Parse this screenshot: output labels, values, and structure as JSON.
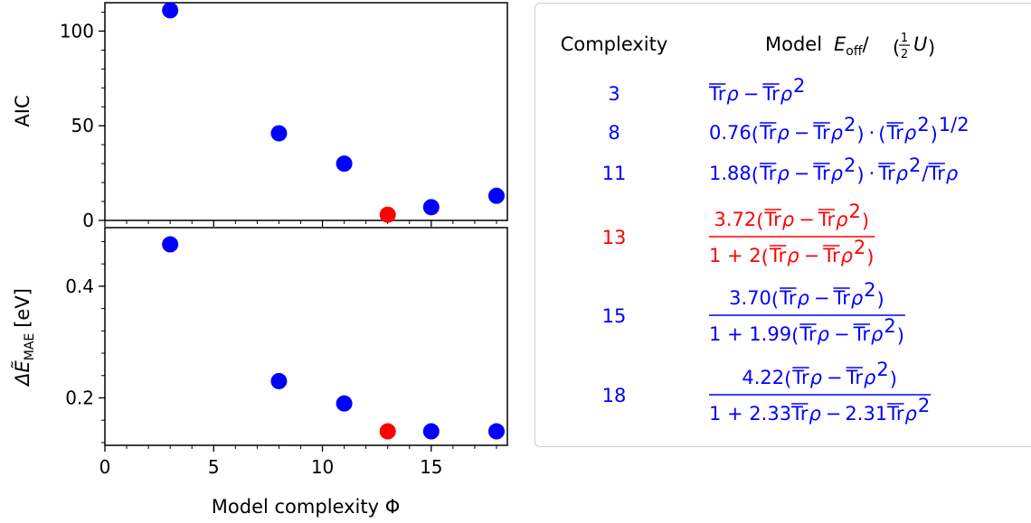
{
  "chart_data": [
    {
      "type": "scatter",
      "ylabel": "AIC",
      "xlabel": "",
      "xlim": [
        0,
        18.5
      ],
      "ylim": [
        0,
        115
      ],
      "yticks": [
        0,
        50,
        100
      ],
      "points": [
        {
          "x": 3,
          "y": 111,
          "color": "#0000ff"
        },
        {
          "x": 8,
          "y": 46,
          "color": "#0000ff"
        },
        {
          "x": 11,
          "y": 30,
          "color": "#0000ff"
        },
        {
          "x": 13,
          "y": 3,
          "color": "#ff0000"
        },
        {
          "x": 15,
          "y": 7,
          "color": "#0000ff"
        },
        {
          "x": 18,
          "y": 13,
          "color": "#0000ff"
        }
      ]
    },
    {
      "type": "scatter",
      "ylabel": "MAE",
      "xlabel": "Model complexity Φ",
      "xlim": [
        0,
        18.5
      ],
      "ylim": [
        0.115,
        0.505
      ],
      "yticks": [
        0.2,
        0.4
      ],
      "xticks": [
        0,
        5,
        10,
        15
      ],
      "points": [
        {
          "x": 3,
          "y": 0.475,
          "color": "#0000ff"
        },
        {
          "x": 8,
          "y": 0.23,
          "color": "#0000ff"
        },
        {
          "x": 11,
          "y": 0.19,
          "color": "#0000ff"
        },
        {
          "x": 13,
          "y": 0.14,
          "color": "#ff0000"
        },
        {
          "x": 15,
          "y": 0.14,
          "color": "#0000ff"
        },
        {
          "x": 18,
          "y": 0.14,
          "color": "#0000ff"
        }
      ]
    }
  ],
  "labels": {
    "top_ylabel": "AIC",
    "bottom_ylabel_prefix": "ΔẼ",
    "bottom_ylabel_sub": "MAE",
    "bottom_ylabel_suffix": "[eV]",
    "xlabel_text": "Model complexity",
    "xlabel_symbol": "Φ"
  },
  "legend_table": {
    "header_complexity": "Complexity",
    "header_model": "Model",
    "header_E": "E",
    "header_off": "off",
    "header_slash": "/",
    "header_half_num": "1",
    "header_half_den": "2",
    "header_U": "U",
    "rows": [
      {
        "complexity": "3",
        "color": "#0000ff"
      },
      {
        "complexity": "8",
        "color": "#0000ff",
        "coef": "0.76",
        "exp": "1/2"
      },
      {
        "complexity": "11",
        "color": "#0000ff",
        "coef": "1.88"
      },
      {
        "complexity": "13",
        "color": "#ff0000",
        "num_coef": "3.72",
        "den": "1 + 2"
      },
      {
        "complexity": "15",
        "color": "#0000ff",
        "num_coef": "3.70",
        "den": "1 + 1.99"
      },
      {
        "complexity": "18",
        "color": "#0000ff",
        "num_coef": "4.22",
        "den_a": "1 + 2.33",
        "den_b": "2.31"
      }
    ],
    "tr": "Tr",
    "rho": "ρ",
    "minus": "−",
    "sq": "2",
    "dot": "·",
    "slash": "/"
  }
}
